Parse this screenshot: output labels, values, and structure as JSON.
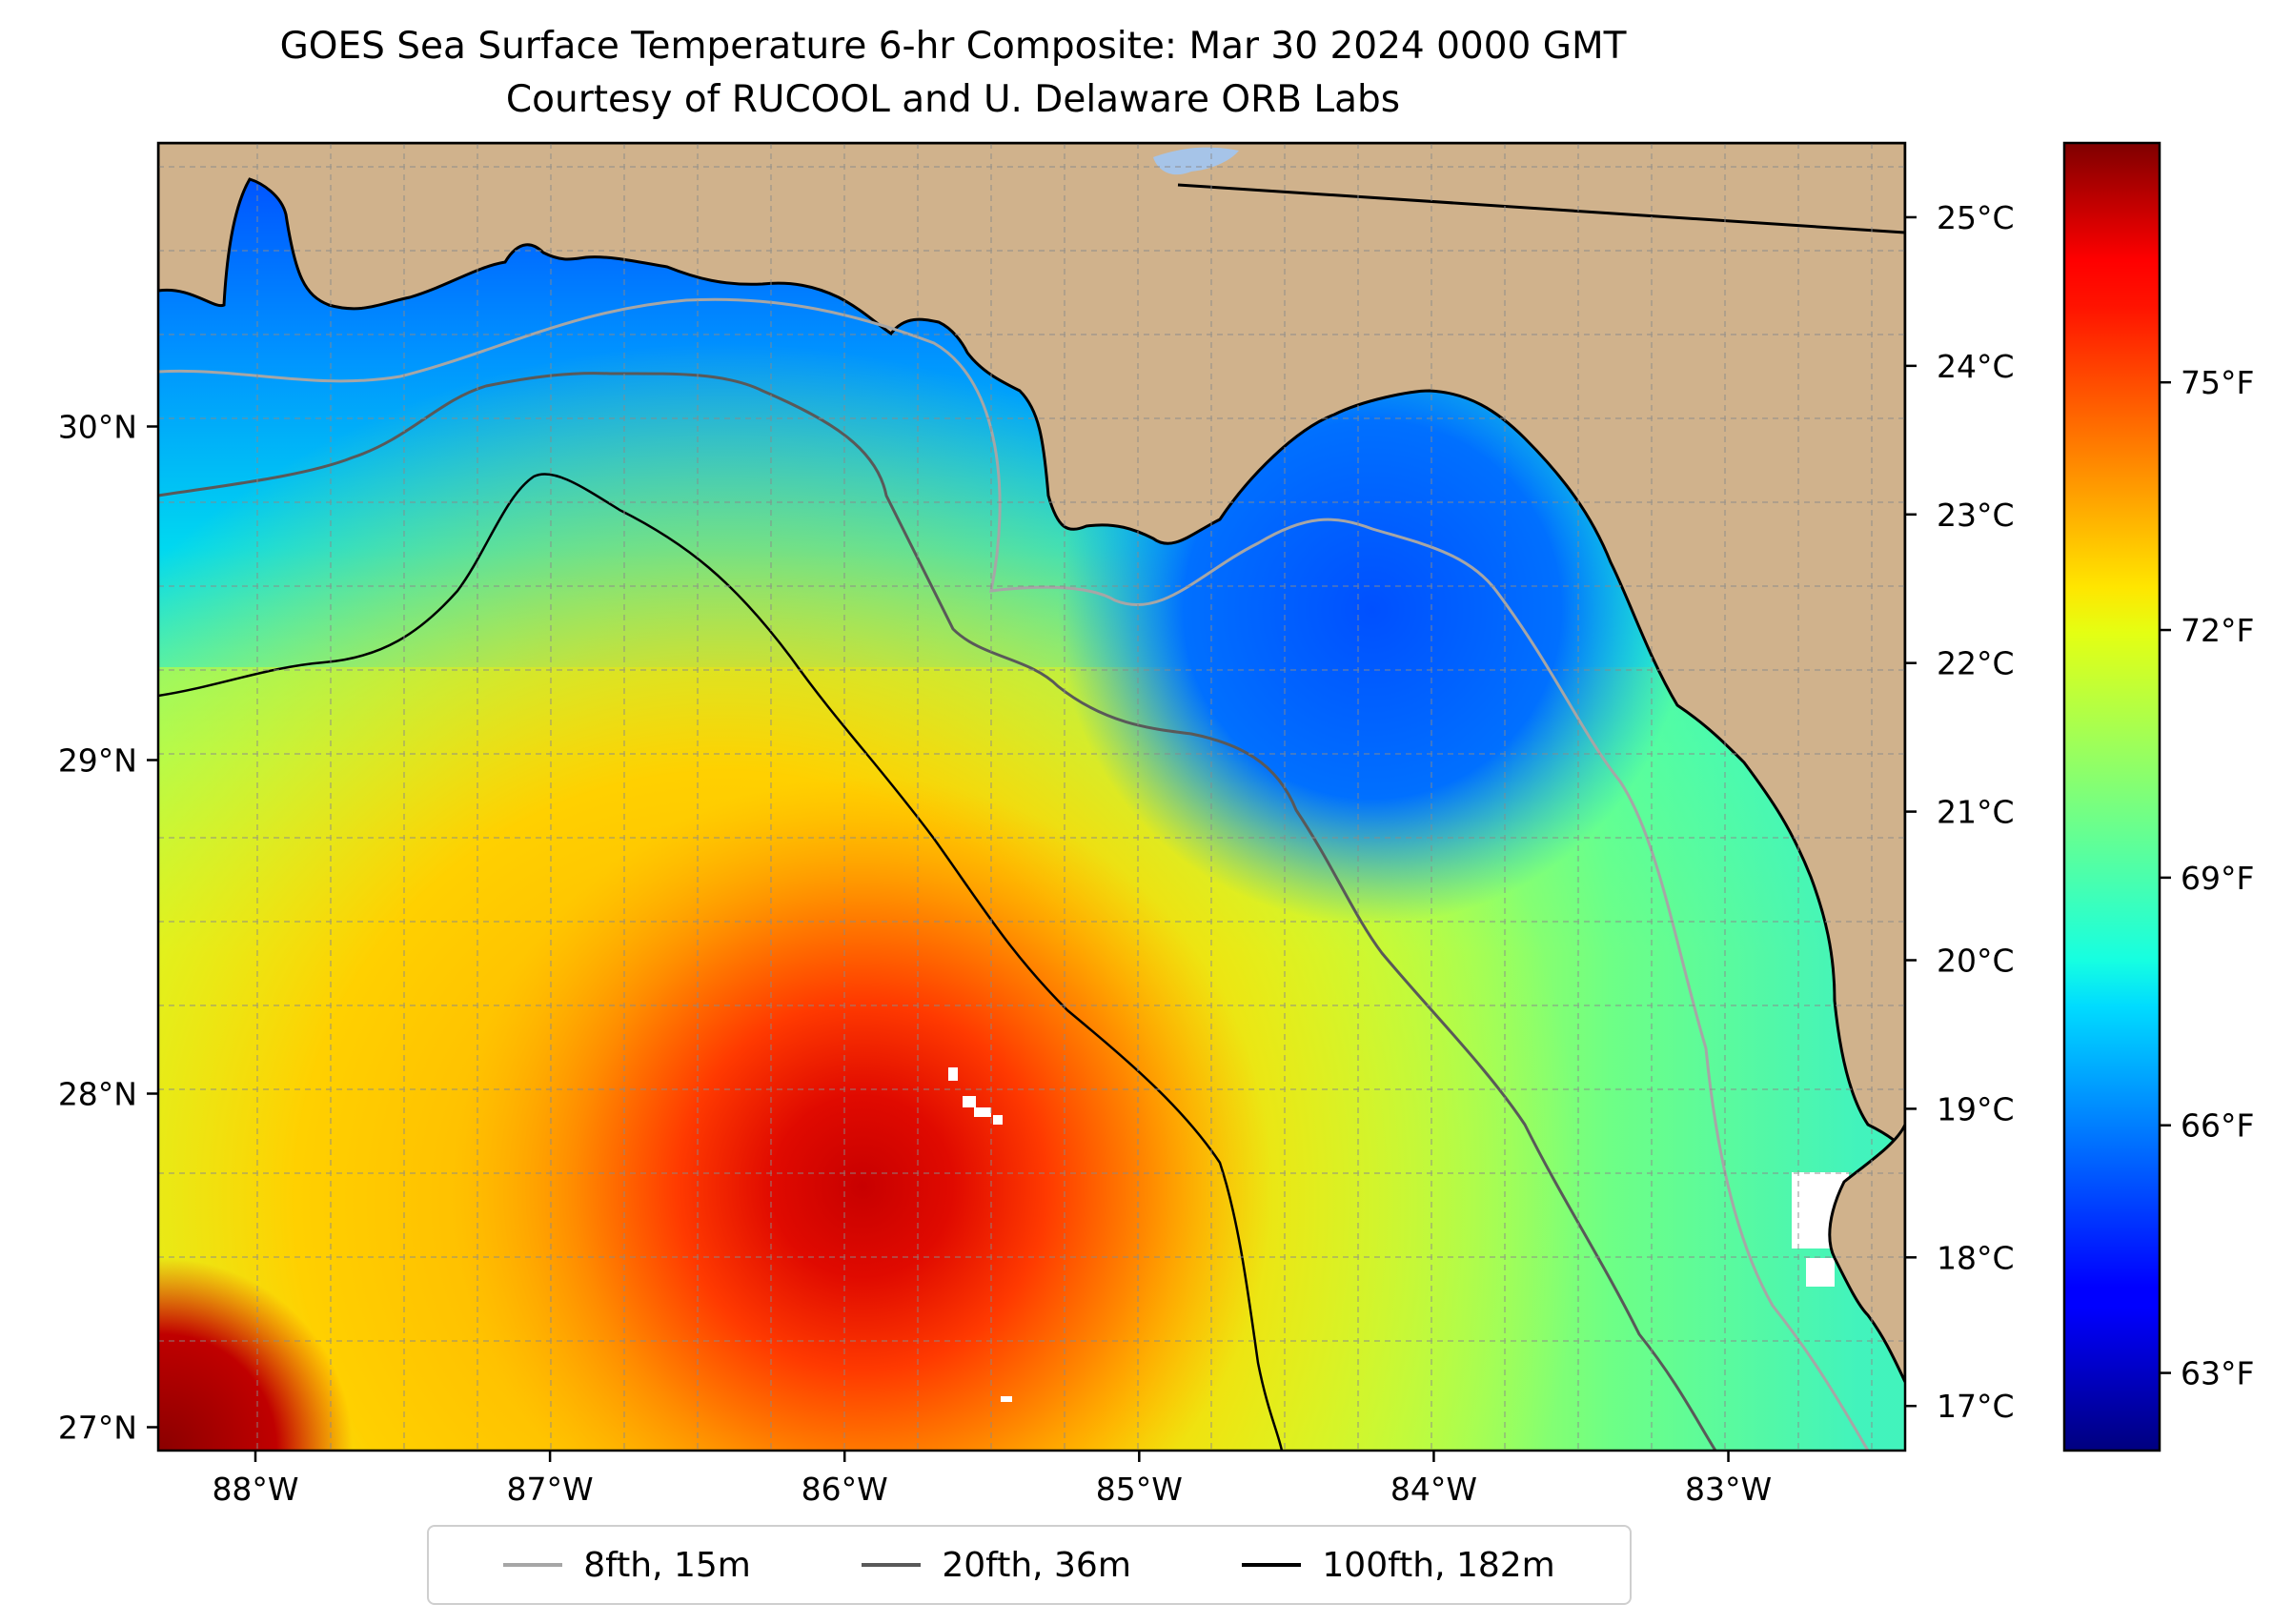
{
  "title": {
    "line1": "GOES Sea Surface Temperature 6-hr Composite: Mar 30 2024 0000 GMT",
    "line2": "Courtesy of RUCOOL and U. Delaware ORB Labs"
  },
  "map": {
    "extent_lon": [
      -88.33,
      -82.4
    ],
    "extent_lat": [
      26.93,
      30.85
    ],
    "land_color": "#d0b28c",
    "lon_ticks": [
      {
        "value": -88,
        "label": "88°W"
      },
      {
        "value": -87,
        "label": "87°W"
      },
      {
        "value": -86,
        "label": "86°W"
      },
      {
        "value": -85,
        "label": "85°W"
      },
      {
        "value": -84,
        "label": "84°W"
      },
      {
        "value": -83,
        "label": "83°W"
      }
    ],
    "lat_ticks": [
      {
        "value": 27,
        "label": "27°N"
      },
      {
        "value": 28,
        "label": "28°N"
      },
      {
        "value": 29,
        "label": "29°N"
      },
      {
        "value": 30,
        "label": "30°N"
      }
    ]
  },
  "colorbar": {
    "colormap": "jet",
    "range_c": [
      16.7,
      25.5
    ],
    "celsius_ticks": [
      {
        "value": 17,
        "label": "17°C"
      },
      {
        "value": 18,
        "label": "18°C"
      },
      {
        "value": 19,
        "label": "19°C"
      },
      {
        "value": 20,
        "label": "20°C"
      },
      {
        "value": 21,
        "label": "21°C"
      },
      {
        "value": 22,
        "label": "22°C"
      },
      {
        "value": 23,
        "label": "23°C"
      },
      {
        "value": 24,
        "label": "24°C"
      },
      {
        "value": 25,
        "label": "25°C"
      }
    ],
    "fahrenheit_ticks": [
      {
        "value": 63,
        "label": "63°F"
      },
      {
        "value": 66,
        "label": "66°F"
      },
      {
        "value": 69,
        "label": "69°F"
      },
      {
        "value": 72,
        "label": "72°F"
      },
      {
        "value": 75,
        "label": "75°F"
      }
    ]
  },
  "legend": [
    {
      "label": "8fth, 15m",
      "color": "#a6a6a6"
    },
    {
      "label": "20fth, 36m",
      "color": "#595959"
    },
    {
      "label": "100fth, 182m",
      "color": "#000000"
    }
  ]
}
